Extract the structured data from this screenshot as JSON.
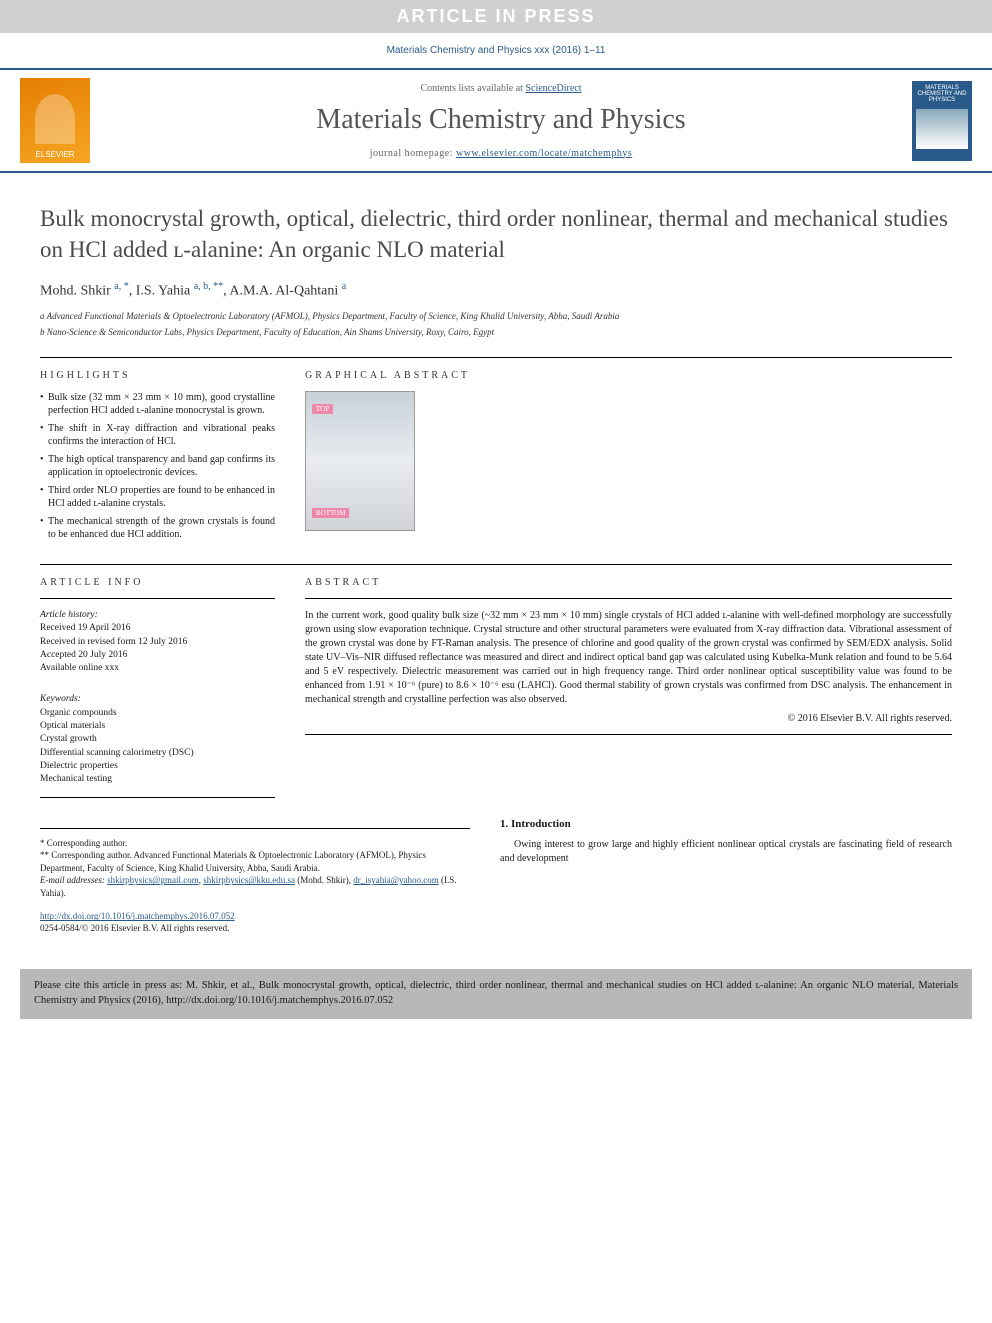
{
  "banner": "ARTICLE IN PRESS",
  "citation_top": "Materials Chemistry and Physics xxx (2016) 1–11",
  "header": {
    "contents_prefix": "Contents lists available at ",
    "contents_link": "ScienceDirect",
    "journal_name": "Materials Chemistry and Physics",
    "homepage_prefix": "journal homepage: ",
    "homepage_url": "www.elsevier.com/locate/matchemphys",
    "elsevier": "ELSEVIER",
    "cover_text": "MATERIALS CHEMISTRY AND PHYSICS"
  },
  "title": "Bulk monocrystal growth, optical, dielectric, third order nonlinear, thermal and mechanical studies on HCl added ʟ-alanine: An organic NLO material",
  "authors_html": "Mohd. Shkir <sup>a, *</sup>, I.S. Yahia <sup>a, b, **</sup>, A.M.A. Al-Qahtani <sup>a</sup>",
  "affiliations": {
    "a": "a Advanced Functional Materials & Optoelectronic Laboratory (AFMOL), Physics Department, Faculty of Science, King Khalid University, Abha, Saudi Arabia",
    "b": "b Nano-Science & Semiconductor Labs, Physics Department, Faculty of Education, Ain Shams University, Roxy, Cairo, Egypt"
  },
  "highlights_label": "HIGHLIGHTS",
  "highlights": [
    "Bulk size (32 mm × 23 mm × 10 mm), good crystalline perfection HCl added ʟ-alanine monocrystal is grown.",
    "The shift in X-ray diffraction and vibrational peaks confirms the interaction of HCl.",
    "The high optical transparency and band gap confirms its application in optoelectronic devices.",
    "Third order NLO properties are found to be enhanced in HCl added ʟ-alanine crystals.",
    "The mechanical strength of the grown crystals is found to be enhanced due HCl addition."
  ],
  "graphical_abstract_label": "GRAPHICAL ABSTRACT",
  "ga_top": "TOP",
  "ga_bottom": "BOTTOM",
  "article_info_label": "ARTICLE INFO",
  "article_info": {
    "history_label": "Article history:",
    "received": "Received 19 April 2016",
    "revised": "Received in revised form 12 July 2016",
    "accepted": "Accepted 20 July 2016",
    "online": "Available online xxx",
    "keywords_label": "Keywords:",
    "keywords": [
      "Organic compounds",
      "Optical materials",
      "Crystal growth",
      "Differential scanning calorimetry (DSC)",
      "Dielectric properties",
      "Mechanical testing"
    ]
  },
  "abstract_label": "ABSTRACT",
  "abstract": "In the current work, good quality bulk size (~32 mm × 23 mm × 10 mm) single crystals of HCl added ʟ-alanine with well-defined morphology are successfully grown using slow evaporation technique. Crystal structure and other structural parameters were evaluated from X-ray diffraction data. Vibrational assessment of the grown crystal was done by FT-Raman analysis. The presence of chlorine and good quality of the grown crystal was confirmed by SEM/EDX analysis. Solid state UV–Vis–NIR diffused reflectance was measured and direct and indirect optical band gap was calculated using Kubelka-Munk relation and found to be 5.64 and 5 eV respectively. Dielectric measurement was carried out in high frequency range. Third order nonlinear optical susceptibility value was found to be enhanced from 1.91 × 10⁻⁶ (pure) to 8.6 × 10⁻⁶ esu (LAHCl). Good thermal stability of grown crystals was confirmed from DSC analysis. The enhancement in mechanical strength and crystalline perfection was also observed.",
  "copyright": "© 2016 Elsevier B.V. All rights reserved.",
  "footnotes": {
    "star1": "* Corresponding author.",
    "star2": "** Corresponding author. Advanced Functional Materials & Optoelectronic Laboratory (AFMOL), Physics Department, Faculty of Science, King Khalid University, Abha, Saudi Arabia.",
    "email_label": "E-mail addresses:",
    "email1": "shkirphysics@gmail.com",
    "email2": "shkirphysics@kku.edu.sa",
    "email1_who": "(Mohd. Shkir),",
    "email3": "dr_isyahia@yahoo.com",
    "email3_who": "(I.S. Yahia)."
  },
  "intro": {
    "heading": "1. Introduction",
    "text": "Owing interest to grow large and highly efficient nonlinear optical crystals are fascinating field of research and development"
  },
  "doi": "http://dx.doi.org/10.1016/j.matchemphys.2016.07.052",
  "issn": "0254-0584/© 2016 Elsevier B.V. All rights reserved.",
  "cite_box": "Please cite this article in press as: M. Shkir, et al., Bulk monocrystal growth, optical, dielectric, third order nonlinear, thermal and mechanical studies on HCl added ʟ-alanine: An organic NLO material, Materials Chemistry and Physics (2016), http://dx.doi.org/10.1016/j.matchemphys.2016.07.052"
}
